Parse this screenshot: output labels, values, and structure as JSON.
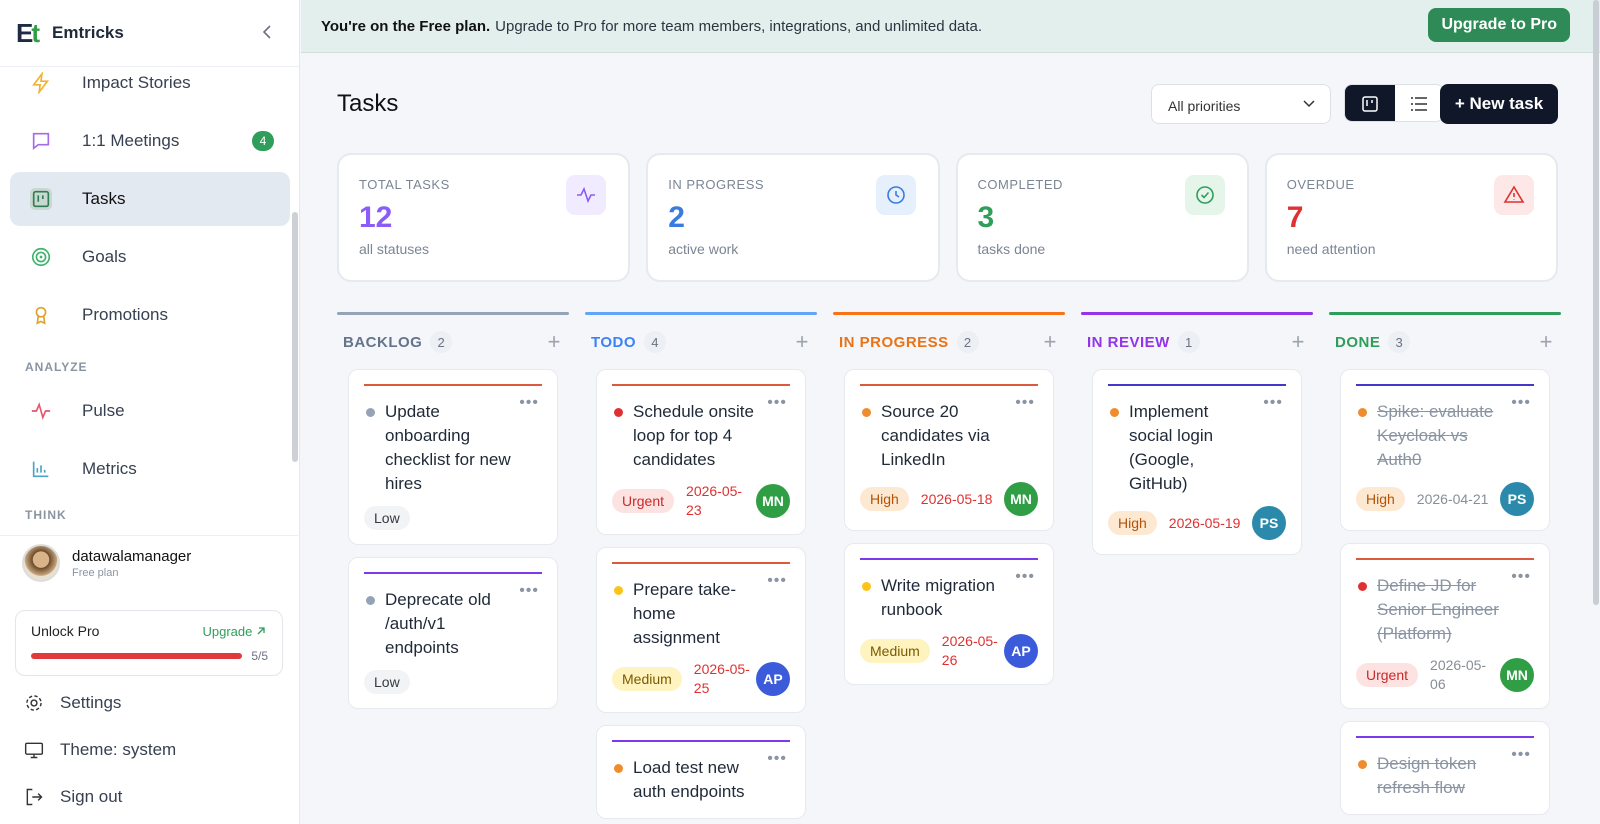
{
  "sidebar": {
    "brand": "Emtricks",
    "nav": [
      {
        "label": "Impact Stories"
      },
      {
        "label": "1:1 Meetings",
        "badge": 4
      },
      {
        "label": "Tasks",
        "active": true
      },
      {
        "label": "Goals"
      },
      {
        "label": "Promotions"
      }
    ],
    "sections": [
      {
        "title": "ANALYZE",
        "items": [
          "Pulse",
          "Metrics"
        ]
      },
      {
        "title": "THINK"
      }
    ],
    "user": {
      "name": "datawalamanager",
      "plan": "Free plan"
    },
    "unlock": {
      "title": "Unlock Pro",
      "link": "Upgrade",
      "usage": "5/5"
    },
    "footer": [
      "Settings",
      "Theme: system",
      "Sign out"
    ]
  },
  "banner": {
    "strong": "You're on the Free plan.",
    "text": "Upgrade to Pro for more team members, integrations, and unlimited data.",
    "button": "Upgrade to Pro"
  },
  "header": {
    "title": "Tasks",
    "filter": "All priorities",
    "new_button": "+ New task"
  },
  "stats": [
    {
      "label": "TOTAL TASKS",
      "value": 12,
      "sub": "all statuses",
      "color": "#8b5cf6",
      "icon_bg": "#f1ebff"
    },
    {
      "label": "IN PROGRESS",
      "value": 2,
      "sub": "active work",
      "color": "#3b7be0",
      "icon_bg": "#e6effc"
    },
    {
      "label": "COMPLETED",
      "value": 3,
      "sub": "tasks done",
      "color": "#2f9e5b",
      "icon_bg": "#e5f5ea"
    },
    {
      "label": "OVERDUE",
      "value": 7,
      "sub": "need attention",
      "color": "#e03131",
      "icon_bg": "#fde7e7"
    }
  ],
  "priority_styles": {
    "Low": {
      "bg": "#f1f3f5",
      "fg": "#343a40"
    },
    "Medium": {
      "bg": "#fff3bf",
      "fg": "#7a5b00"
    },
    "High": {
      "bg": "#fde8d2",
      "fg": "#b45309"
    },
    "Urgent": {
      "bg": "#fde2e2",
      "fg": "#c92a2a"
    }
  },
  "columns": [
    {
      "name": "BACKLOG",
      "count": 2,
      "color": "#94a3b8",
      "text_color": "#64748b",
      "cards": [
        {
          "title": "Update onboarding checklist for new hires",
          "priority": "Low",
          "accent": "#dc5a3c",
          "dot": "#94a3b8"
        },
        {
          "title": "Deprecate old /auth/v1 endpoints",
          "priority": "Low",
          "accent": "#7c3aed",
          "dot": "#94a3b8"
        }
      ]
    },
    {
      "name": "TODO",
      "count": 4,
      "color": "#60a5fa",
      "text_color": "#3b82f6",
      "cards": [
        {
          "title": "Schedule onsite loop for top 4 candidates",
          "priority": "Urgent",
          "due": "2026-05-23",
          "due_color": "#e03131",
          "assignee": "MN",
          "avatar_color": "#2f9e44",
          "accent": "#dc5a3c",
          "dot": "#e03131"
        },
        {
          "title": "Prepare take-home assignment",
          "priority": "Medium",
          "due": "2026-05-25",
          "due_color": "#e03131",
          "assignee": "AP",
          "avatar_color": "#3b5bdb",
          "accent": "#dc5a3c",
          "dot": "#fcc419"
        },
        {
          "title": "Load test new auth endpoints",
          "accent": "#7c3aed",
          "dot": "#f08c2c"
        }
      ]
    },
    {
      "name": "IN PROGRESS",
      "count": 2,
      "color": "#f97316",
      "text_color": "#ea7317",
      "cards": [
        {
          "title": "Source 20 candidates via LinkedIn",
          "priority": "High",
          "due": "2026-05-18",
          "due_color": "#e03131",
          "assignee": "MN",
          "avatar_color": "#2f9e44",
          "accent": "#dc5a3c",
          "dot": "#f08c2c"
        },
        {
          "title": "Write migration runbook",
          "priority": "Medium",
          "due": "2026-05-26",
          "due_color": "#e03131",
          "assignee": "AP",
          "avatar_color": "#3b5bdb",
          "accent": "#7c3aed",
          "dot": "#fcc419"
        }
      ]
    },
    {
      "name": "IN REVIEW",
      "count": 1,
      "color": "#9333ea",
      "text_color": "#9333ea",
      "cards": [
        {
          "title": "Implement social login (Google, GitHub)",
          "priority": "High",
          "due": "2026-05-19",
          "due_color": "#e03131",
          "assignee": "PS",
          "avatar_color": "#2b8aab",
          "accent": "#4338ca",
          "dot": "#f08c2c"
        }
      ]
    },
    {
      "name": "DONE",
      "count": 3,
      "color": "#2f9e5b",
      "text_color": "#2f9e5b",
      "cards": [
        {
          "title": "Spike: evaluate Keycloak vs Auth0",
          "priority": "High",
          "due": "2026-04-21",
          "due_color": "#868e96",
          "assignee": "PS",
          "avatar_color": "#2b8aab",
          "accent": "#4338ca",
          "dot": "#f08c2c",
          "done": true
        },
        {
          "title": "Define JD for Senior Engineer (Platform)",
          "priority": "Urgent",
          "due": "2026-05-06",
          "due_color": "#868e96",
          "assignee": "MN",
          "avatar_color": "#2f9e44",
          "accent": "#dc5a3c",
          "dot": "#e03131",
          "done": true
        },
        {
          "title": "Design token refresh flow",
          "accent": "#7c3aed",
          "dot": "#f08c2c",
          "done": true
        }
      ]
    }
  ]
}
